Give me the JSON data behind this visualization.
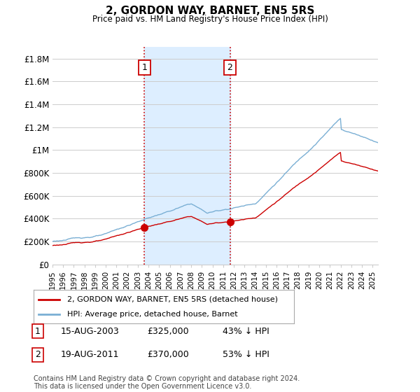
{
  "title": "2, GORDON WAY, BARNET, EN5 5RS",
  "subtitle": "Price paid vs. HM Land Registry's House Price Index (HPI)",
  "ylabel_ticks": [
    "£0",
    "£200K",
    "£400K",
    "£600K",
    "£800K",
    "£1M",
    "£1.2M",
    "£1.4M",
    "£1.6M",
    "£1.8M"
  ],
  "ytick_values": [
    0,
    200000,
    400000,
    600000,
    800000,
    1000000,
    1200000,
    1400000,
    1600000,
    1800000
  ],
  "ylim": [
    0,
    1900000
  ],
  "xlim_start": 1995.0,
  "xlim_end": 2025.5,
  "sale1_x": 2003.62,
  "sale1_y": 325000,
  "sale2_x": 2011.63,
  "sale2_y": 370000,
  "sale1_label": "1",
  "sale2_label": "2",
  "sale1_date": "15-AUG-2003",
  "sale1_price": "£325,000",
  "sale1_note": "43% ↓ HPI",
  "sale2_date": "19-AUG-2011",
  "sale2_price": "£370,000",
  "sale2_note": "53% ↓ HPI",
  "legend_line1": "2, GORDON WAY, BARNET, EN5 5RS (detached house)",
  "legend_line2": "HPI: Average price, detached house, Barnet",
  "footnote": "Contains HM Land Registry data © Crown copyright and database right 2024.\nThis data is licensed under the Open Government Licence v3.0.",
  "line_color_sale": "#cc0000",
  "line_color_hpi": "#7aafd4",
  "shade_color": "#ddeeff",
  "vline_color": "#cc0000",
  "background_color": "#ffffff",
  "grid_color": "#cccccc"
}
